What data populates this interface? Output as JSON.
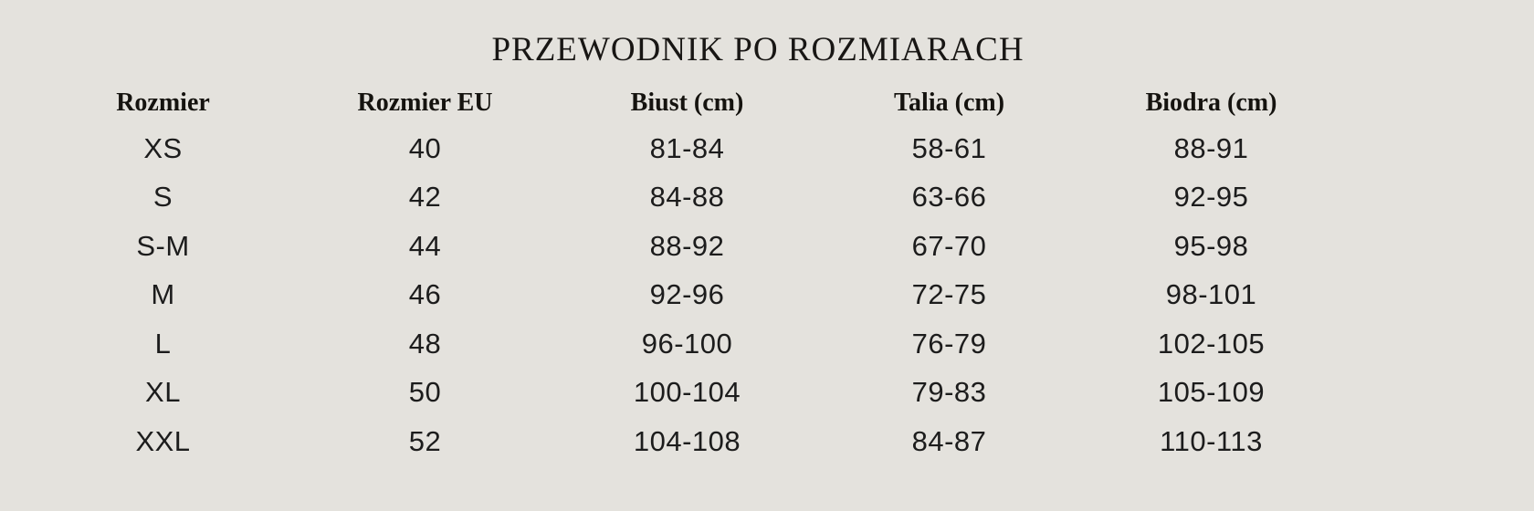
{
  "page": {
    "background_color": "#e4e2dd",
    "text_color": "#1a1a1a"
  },
  "chart_data": {
    "type": "table",
    "title": "PRZEWODNIK PO ROZMIARACH",
    "columns": [
      "Rozmier",
      "Rozmier EU",
      "Biust (cm)",
      "Talia (cm)",
      "Biodra (cm)"
    ],
    "rows": [
      [
        "XS",
        "40",
        "81-84",
        "58-61",
        "88-91"
      ],
      [
        "S",
        "42",
        "84-88",
        "63-66",
        "92-95"
      ],
      [
        "S-M",
        "44",
        "88-92",
        "67-70",
        "95-98"
      ],
      [
        "M",
        "46",
        "92-96",
        "72-75",
        "98-101"
      ],
      [
        "L",
        "48",
        "96-100",
        "76-79",
        "102-105"
      ],
      [
        "XL",
        "50",
        "100-104",
        "79-83",
        "105-109"
      ],
      [
        "XXL",
        "52",
        "104-108",
        "84-87",
        "110-113"
      ]
    ]
  }
}
